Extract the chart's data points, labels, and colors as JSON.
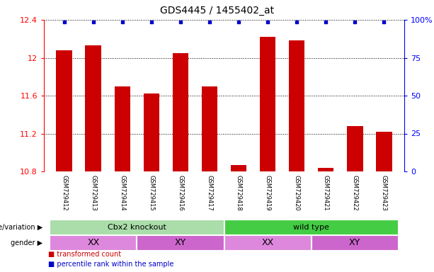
{
  "title": "GDS4445 / 1455402_at",
  "samples": [
    "GSM729412",
    "GSM729413",
    "GSM729414",
    "GSM729415",
    "GSM729416",
    "GSM729417",
    "GSM729418",
    "GSM729419",
    "GSM729420",
    "GSM729421",
    "GSM729422",
    "GSM729423"
  ],
  "bar_values": [
    12.08,
    12.13,
    11.7,
    11.62,
    12.05,
    11.7,
    10.87,
    12.22,
    12.18,
    10.84,
    11.28,
    11.22
  ],
  "percentile_values": [
    97,
    97,
    97,
    97,
    97,
    97,
    95,
    97,
    97,
    93,
    95,
    95
  ],
  "bar_color": "#cc0000",
  "percentile_color": "#0000cc",
  "ymin": 10.8,
  "ymax": 12.4,
  "yticks": [
    10.8,
    11.2,
    11.6,
    12.0,
    12.4
  ],
  "right_ytick_labels": [
    "0",
    "25",
    "50",
    "75",
    "100%"
  ],
  "right_ytick_pct": [
    0,
    25,
    50,
    75,
    100
  ],
  "genotype_groups": [
    {
      "label": "Cbx2 knockout",
      "start": 0,
      "end": 6,
      "color": "#aaddaa"
    },
    {
      "label": "wild type",
      "start": 6,
      "end": 12,
      "color": "#44cc44"
    }
  ],
  "gender_groups": [
    {
      "label": "XX",
      "start": 0,
      "end": 3,
      "color": "#dd88dd"
    },
    {
      "label": "XY",
      "start": 3,
      "end": 6,
      "color": "#cc66cc"
    },
    {
      "label": "XX",
      "start": 6,
      "end": 9,
      "color": "#dd88dd"
    },
    {
      "label": "XY",
      "start": 9,
      "end": 12,
      "color": "#cc66cc"
    }
  ],
  "genotype_label": "genotype/variation ▶",
  "gender_label": "gender ▶",
  "legend_items": [
    {
      "label": "transformed count",
      "color": "#cc0000"
    },
    {
      "label": "percentile rank within the sample",
      "color": "#0000cc"
    }
  ],
  "bar_width": 0.55,
  "xlabel_bg": "#d0d0d0",
  "fig_bg": "#ffffff"
}
